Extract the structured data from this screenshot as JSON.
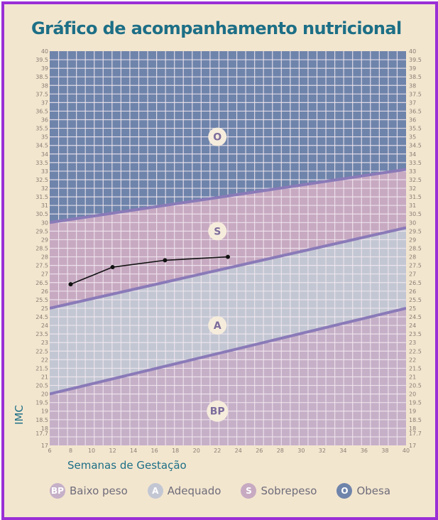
{
  "title": "Gráfico de acompanhamento nutricional",
  "chart_data": {
    "type": "line",
    "title": "Gráfico de acompanhamento nutricional",
    "xlabel": "Semanas de Gestação",
    "ylabel": "IMC",
    "xlim": [
      6,
      40
    ],
    "ylim": [
      17,
      40
    ],
    "x_ticks": [
      6,
      8,
      10,
      12,
      14,
      16,
      18,
      20,
      22,
      24,
      26,
      28,
      30,
      32,
      34,
      36,
      38,
      40
    ],
    "y_ticks": [
      17,
      17.7,
      18,
      18.5,
      19,
      19.5,
      20,
      20.5,
      21,
      21.5,
      22,
      22.5,
      23,
      23.5,
      24,
      24.5,
      25,
      25.5,
      26,
      26.5,
      27,
      27.5,
      28,
      28.5,
      29,
      29.5,
      30,
      30.5,
      31,
      31.5,
      32,
      32.5,
      33,
      33.5,
      34,
      34.5,
      35,
      35.5,
      36,
      36.5,
      37,
      37.5,
      38,
      38.5,
      39,
      39.5,
      40
    ],
    "grid": true,
    "series": [
      {
        "x": [
          8,
          12,
          17,
          23
        ],
        "y": [
          26.4,
          27.4,
          27.8,
          28.0
        ]
      }
    ],
    "boundaries": [
      {
        "x": [
          6,
          40
        ],
        "y": [
          20.0,
          25.0
        ]
      },
      {
        "x": [
          6,
          40
        ],
        "y": [
          25.0,
          29.7
        ]
      },
      {
        "x": [
          6,
          40
        ],
        "y": [
          30.0,
          33.1
        ]
      }
    ],
    "zones": [
      {
        "code": "BP",
        "label": "Baixo peso",
        "label_x": 22,
        "label_y": 19.0,
        "color": "#c6b0c8"
      },
      {
        "code": "A",
        "label": "Adequado",
        "label_x": 22,
        "label_y": 24.0,
        "color": "#c3c7d3"
      },
      {
        "code": "S",
        "label": "Sobrepeso",
        "label_x": 22,
        "label_y": 29.5,
        "color": "#c7aac2"
      },
      {
        "code": "O",
        "label": "Obesa",
        "label_x": 22,
        "label_y": 35.0,
        "color": "#6f84ab"
      }
    ],
    "legend_position": "bottom"
  },
  "legend": [
    {
      "code": "BP",
      "label": "Baixo peso"
    },
    {
      "code": "A",
      "label": "Adequado"
    },
    {
      "code": "S",
      "label": "Sobrepeso"
    },
    {
      "code": "O",
      "label": "Obesa"
    }
  ],
  "colors": {
    "background": "#f3e6cf",
    "grid": "#f2e8ee",
    "boundary": "#8a7ab8",
    "title": "#1d6f86",
    "series": "#111111",
    "badge": "#f6ecdc",
    "badge_text": "#7c6c9c",
    "frame": "#9b2fd6"
  }
}
